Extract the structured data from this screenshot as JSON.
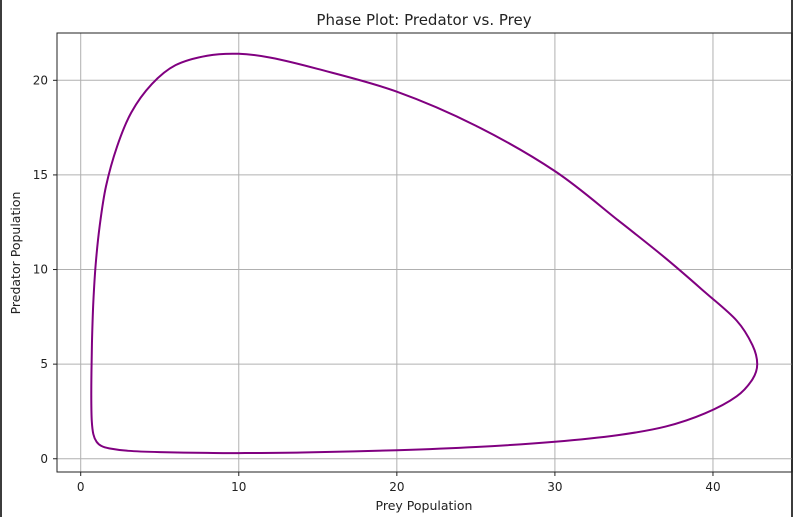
{
  "chart_data": {
    "type": "line",
    "title": "Phase Plot: Predator vs. Prey",
    "xlabel": "Prey Population",
    "ylabel": "Predator Population",
    "xlim": [
      -1.5,
      45
    ],
    "ylim": [
      -0.7,
      22.5
    ],
    "xticks": [
      0,
      10,
      20,
      30,
      40
    ],
    "yticks": [
      0,
      5,
      10,
      15,
      20
    ],
    "grid": true,
    "series": [
      {
        "color": "#800080",
        "x": [
          10.0,
          8,
          6,
          4.5,
          3.2,
          2.3,
          1.6,
          1.2,
          0.95,
          0.8,
          0.72,
          0.68,
          0.67,
          0.7,
          0.8,
          1.0,
          1.3,
          1.8,
          3,
          5,
          8,
          10,
          14,
          20,
          25,
          30,
          34,
          37,
          39.5,
          41.5,
          42.5,
          42.8,
          42.5,
          41.5,
          39.5,
          37,
          34,
          30,
          25,
          20,
          15,
          12,
          10.0
        ],
        "y": [
          21.4,
          21.3,
          20.8,
          19.8,
          18.3,
          16.5,
          14.4,
          12.3,
          10.3,
          8.3,
          6.4,
          4.6,
          3.1,
          2.0,
          1.3,
          0.9,
          0.68,
          0.55,
          0.42,
          0.35,
          0.31,
          0.3,
          0.33,
          0.45,
          0.62,
          0.9,
          1.25,
          1.7,
          2.4,
          3.3,
          4.2,
          5.0,
          6.0,
          7.3,
          8.8,
          10.6,
          12.6,
          15.2,
          17.6,
          19.4,
          20.6,
          21.2,
          21.4
        ]
      }
    ]
  }
}
